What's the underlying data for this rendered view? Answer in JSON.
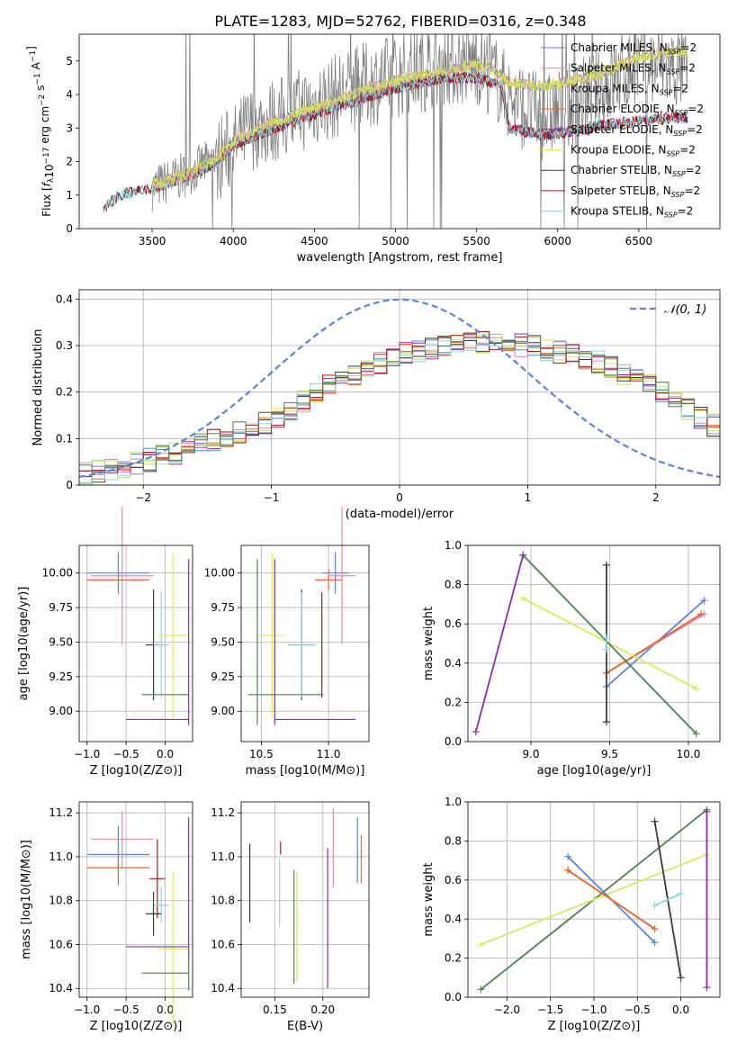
{
  "figure_title": "PLATE=1283, MJD=52762, FIBERID=0316, z=0.348",
  "colors": {
    "Chabrier MILES": "#5b84d6",
    "Salpeter MILES": "#e887b8",
    "Kroupa MILES": "#c9dc52",
    "Chabrier ELODIE": "#e26a2c",
    "Salpeter ELODIE": "#8e2ca8",
    "Kroupa ELODIE": "#d7ea5a",
    "Chabrier STELIB": "#3b3b3b",
    "Salpeter STELIB": "#b3151b",
    "Kroupa STELIB": "#8fd6dc",
    "data": "#808080",
    "normal": "#5b84d6",
    "extra_green": "#4f7f55"
  },
  "chart_data": [
    {
      "id": "spectrum",
      "type": "line",
      "xlabel": "wavelength [Angstrom, rest frame]",
      "ylabel": "Flux [f_λ 10^-17 erg cm^-2 s^-1 A^-1]",
      "xlim": [
        3050,
        7000
      ],
      "ylim": [
        0,
        5.8
      ],
      "xticks": [
        3500,
        4000,
        4500,
        5000,
        5500,
        6000,
        6500
      ],
      "yticks": [
        0,
        1,
        2,
        3,
        4,
        5
      ],
      "grid": false,
      "legend_position": "top-right",
      "legend": [
        {
          "label": "Chabrier MILES, N_SSP=2",
          "color_key": "Chabrier MILES"
        },
        {
          "label": "Salpeter MILES, N_SSP=2",
          "color_key": "Salpeter MILES"
        },
        {
          "label": "Kroupa MILES, N_SSP=2",
          "color_key": "Kroupa MILES"
        },
        {
          "label": "Chabrier ELODIE, N_SSP=2",
          "color_key": "Chabrier ELODIE"
        },
        {
          "label": "Salpeter ELODIE, N_SSP=2",
          "color_key": "Salpeter ELODIE"
        },
        {
          "label": "Kroupa ELODIE, N_SSP=2",
          "color_key": "Kroupa ELODIE"
        },
        {
          "label": "Chabrier STELIB, N_SSP=2",
          "color_key": "Chabrier STELIB"
        },
        {
          "label": "Salpeter STELIB, N_SSP=2",
          "color_key": "Salpeter STELIB"
        },
        {
          "label": "Kroupa STELIB, N_SSP=2",
          "color_key": "Kroupa STELIB"
        }
      ],
      "data_envelope": {
        "x": [
          3500,
          3700,
          3900,
          4000,
          4100,
          4300,
          4500,
          4700,
          4900,
          5100,
          5300,
          5500,
          5600,
          5700,
          5900,
          6100,
          6300,
          6500,
          6700,
          6800
        ],
        "y": [
          1.2,
          1.6,
          2.1,
          2.4,
          3.0,
          3.3,
          3.7,
          4.1,
          4.4,
          4.7,
          4.9,
          4.95,
          4.6,
          3.9,
          3.3,
          3.7,
          4.3,
          4.9,
          4.8,
          4.7
        ]
      },
      "model_spectra": [
        {
          "name": "MILES models",
          "x": [
            3500,
            3700,
            3900,
            4000,
            4200,
            4500,
            4800,
            5000,
            5300,
            5500,
            5600,
            5700,
            5900,
            6100,
            6300,
            6500,
            6700
          ],
          "y": [
            1.3,
            1.6,
            2.1,
            2.6,
            3.1,
            3.6,
            4.1,
            4.4,
            4.7,
            4.9,
            4.75,
            4.35,
            4.25,
            4.4,
            4.7,
            5.1,
            5.3
          ]
        },
        {
          "name": "STELIB/ELODIE models",
          "x": [
            3200,
            3300,
            3500,
            3700,
            3900,
            4000,
            4200,
            4500,
            4800,
            5000,
            5300,
            5500,
            5650,
            5700,
            5900,
            6100,
            6300,
            6500,
            6700
          ],
          "y": [
            0.6,
            1.0,
            1.2,
            1.55,
            1.95,
            2.5,
            2.9,
            3.4,
            3.9,
            4.2,
            4.5,
            4.5,
            4.3,
            3.0,
            2.8,
            2.9,
            3.1,
            3.2,
            3.3
          ]
        }
      ]
    },
    {
      "id": "residuals",
      "type": "line",
      "xlabel": "(data-model)/error",
      "ylabel": "Normed distribution",
      "xlim": [
        -2.5,
        2.5
      ],
      "ylim": [
        0,
        0.42
      ],
      "xticks": [
        -2,
        -1,
        0,
        1,
        2
      ],
      "yticks": [
        0.0,
        0.1,
        0.2,
        0.3,
        0.4
      ],
      "grid": true,
      "legend_position": "top-right",
      "legend": [
        {
          "label": "𝒩(0, 1)",
          "color_key": "normal"
        }
      ],
      "histogram_mean_curve": {
        "x": [
          -2.5,
          -2.0,
          -1.5,
          -1.0,
          -0.5,
          0.0,
          0.5,
          1.0,
          1.5,
          2.0,
          2.5
        ],
        "y": [
          0.02,
          0.05,
          0.09,
          0.14,
          0.22,
          0.28,
          0.31,
          0.3,
          0.27,
          0.21,
          0.12
        ]
      }
    },
    {
      "id": "age_vs_Z",
      "type": "scatter",
      "xlabel": "Z [log10(Z/Z⊙)]",
      "ylabel": "age [log10(age/yr)]",
      "xlim": [
        -1.1,
        0.35
      ],
      "ylim": [
        8.78,
        10.2
      ],
      "xticks": [
        -1.0,
        -0.5,
        0.0
      ],
      "xtick_labels": [
        "−1.0",
        "−0.5",
        "0.0"
      ],
      "yticks": [
        9.0,
        9.25,
        9.5,
        9.75,
        10.0
      ],
      "ytick_labels": [
        "9.00",
        "9.25",
        "9.50",
        "9.75",
        "10.00"
      ],
      "grid": true,
      "points": [
        {
          "color_key": "Chabrier MILES",
          "x": -0.6,
          "y": 10.0,
          "xerr": 0.4,
          "yerr": 0.15
        },
        {
          "color_key": "Salpeter MILES",
          "x": -0.55,
          "y": 9.98,
          "xerr": 0.4,
          "yerr": 0.5
        },
        {
          "color_key": "Chabrier ELODIE",
          "x": -0.6,
          "y": 9.95,
          "xerr": 0.4,
          "yerr": 0.08
        },
        {
          "color_key": "Chabrier STELIB",
          "x": -0.15,
          "y": 9.48,
          "xerr": 0.1,
          "yerr": 0.4
        },
        {
          "color_key": "Kroupa STELIB",
          "x": -0.05,
          "y": 9.48,
          "xerr": 0.1,
          "yerr": 0.38
        },
        {
          "color_key": "Kroupa ELODIE",
          "x": 0.1,
          "y": 9.55,
          "xerr": 0.2,
          "yerr": 0.6
        },
        {
          "color_key": "extra_green",
          "x": 0.0,
          "y": 9.12,
          "xerr": 0.3,
          "yerr": 0.0
        },
        {
          "color_key": "Salpeter ELODIE",
          "x": -0.1,
          "y": 8.94,
          "xerr": 0.4,
          "yerr": 0.0
        },
        {
          "color_key": "Salpeter ELODIE",
          "x": 0.3,
          "y": 9.5,
          "xerr": 0.0,
          "yerr": 0.6
        }
      ]
    },
    {
      "id": "age_vs_mass",
      "type": "scatter",
      "xlabel": "mass [log10(M/M⊙)]",
      "ylabel": "",
      "xlim": [
        10.35,
        11.3
      ],
      "ylim": [
        8.78,
        10.2
      ],
      "xticks": [
        10.5,
        11.0
      ],
      "xtick_labels": [
        "10.5",
        "11.0"
      ],
      "yticks": [
        9.0,
        9.25,
        9.5,
        9.75,
        10.0
      ],
      "ytick_labels": [
        "9.00",
        "9.25",
        "9.50",
        "9.75",
        "10.00"
      ],
      "grid": true,
      "points": [
        {
          "color_key": "Chabrier MILES",
          "x": 11.05,
          "y": 10.0,
          "xerr": 0.1,
          "yerr": 0.15
        },
        {
          "color_key": "Salpeter MILES",
          "x": 11.1,
          "y": 9.98,
          "xerr": 0.1,
          "yerr": 0.5
        },
        {
          "color_key": "Chabrier ELODIE",
          "x": 11.0,
          "y": 9.95,
          "xerr": 0.1,
          "yerr": 0.08
        },
        {
          "color_key": "Chabrier STELIB",
          "x": 10.8,
          "y": 9.48,
          "xerr": 0.1,
          "yerr": 0.4
        },
        {
          "color_key": "Kroupa STELIB",
          "x": 10.8,
          "y": 9.48,
          "xerr": 0.1,
          "yerr": 0.38
        },
        {
          "color_key": "Kroupa ELODIE",
          "x": 10.58,
          "y": 9.55,
          "xerr": 0.1,
          "yerr": 0.6
        },
        {
          "color_key": "extra_green",
          "x": 10.68,
          "y": 9.12,
          "xerr": 0.28,
          "yerr": 0.0
        },
        {
          "color_key": "extra_green",
          "x": 10.47,
          "y": 9.5,
          "xerr": 0.0,
          "yerr": 0.6
        },
        {
          "color_key": "Salpeter ELODIE",
          "x": 10.9,
          "y": 8.94,
          "xerr": 0.3,
          "yerr": 0.0
        },
        {
          "color_key": "Salpeter ELODIE",
          "x": 10.6,
          "y": 9.5,
          "xerr": 0.0,
          "yerr": 0.6
        },
        {
          "color_key": "Salpeter STELIB",
          "x": 10.95,
          "y": 9.48,
          "xerr": 0.0,
          "yerr": 0.38
        }
      ]
    },
    {
      "id": "weight_vs_age",
      "type": "line",
      "xlabel": "age [log10(age/yr)]",
      "ylabel": "mass weight",
      "xlim": [
        8.6,
        10.2
      ],
      "ylim": [
        0.0,
        1.0
      ],
      "xticks": [
        9.0,
        9.5,
        10.0
      ],
      "xtick_labels": [
        "9.0",
        "9.5",
        "10.0"
      ],
      "yticks": [
        0.0,
        0.2,
        0.4,
        0.6,
        0.8,
        1.0
      ],
      "ytick_labels": [
        "0.0",
        "0.2",
        "0.4",
        "0.6",
        "0.8",
        "1.0"
      ],
      "grid": true,
      "series": [
        {
          "color_key": "Chabrier MILES",
          "x": [
            9.48,
            10.1
          ],
          "y": [
            0.28,
            0.72
          ]
        },
        {
          "color_key": "Salpeter MILES",
          "x": [
            9.48,
            10.1
          ],
          "y": [
            0.35,
            0.65
          ]
        },
        {
          "color_key": "Chabrier ELODIE",
          "x": [
            9.48,
            10.08
          ],
          "y": [
            0.35,
            0.65
          ]
        },
        {
          "color_key": "Kroupa ELODIE",
          "x": [
            8.95,
            10.05
          ],
          "y": [
            0.73,
            0.27
          ]
        },
        {
          "color_key": "extra_green",
          "x": [
            8.95,
            10.05
          ],
          "y": [
            0.95,
            0.04
          ]
        },
        {
          "color_key": "Salpeter ELODIE",
          "x": [
            8.65,
            8.95
          ],
          "y": [
            0.05,
            0.95
          ]
        },
        {
          "color_key": "Chabrier STELIB",
          "x": [
            9.48,
            9.48
          ],
          "y": [
            0.1,
            0.9
          ]
        },
        {
          "color_key": "Kroupa STELIB",
          "x": [
            9.48,
            9.48
          ],
          "y": [
            0.47,
            0.53
          ]
        }
      ]
    },
    {
      "id": "mass_vs_Z",
      "type": "scatter",
      "xlabel": "Z [log10(Z/Z⊙)]",
      "ylabel": "mass [log10(M/M⊙)]",
      "xlim": [
        -1.1,
        0.35
      ],
      "ylim": [
        10.36,
        11.25
      ],
      "xticks": [
        -1.0,
        -0.5,
        0.0
      ],
      "xtick_labels": [
        "−1.0",
        "−0.5",
        "0.0"
      ],
      "yticks": [
        10.4,
        10.6,
        10.8,
        11.0,
        11.2
      ],
      "ytick_labels": [
        "10.4",
        "10.6",
        "10.8",
        "11.0",
        "11.2"
      ],
      "grid": true,
      "points": [
        {
          "color_key": "Chabrier MILES",
          "x": -0.6,
          "y": 11.01,
          "xerr": 0.4,
          "yerr": 0.13
        },
        {
          "color_key": "Salpeter MILES",
          "x": -0.55,
          "y": 11.08,
          "xerr": 0.4,
          "yerr": 0.13
        },
        {
          "color_key": "Chabrier ELODIE",
          "x": -0.6,
          "y": 10.95,
          "xerr": 0.4,
          "yerr": 0.08
        },
        {
          "color_key": "Salpeter STELIB",
          "x": -0.1,
          "y": 10.9,
          "xerr": 0.1,
          "yerr": 0.18
        },
        {
          "color_key": "Kroupa STELIB",
          "x": -0.05,
          "y": 10.78,
          "xerr": 0.1,
          "yerr": 0.08
        },
        {
          "color_key": "Chabrier STELIB",
          "x": -0.15,
          "y": 10.74,
          "xerr": 0.1,
          "yerr": 0.1
        },
        {
          "color_key": "Kroupa ELODIE",
          "x": 0.1,
          "y": 10.58,
          "xerr": 0.2,
          "yerr": 0.35
        },
        {
          "color_key": "extra_green",
          "x": 0.0,
          "y": 10.47,
          "xerr": 0.3,
          "yerr": 0.0
        },
        {
          "color_key": "Salpeter ELODIE",
          "x": -0.1,
          "y": 10.59,
          "xerr": 0.4,
          "yerr": 0.0
        },
        {
          "color_key": "Salpeter ELODIE",
          "x": 0.3,
          "y": 10.85,
          "xerr": 0.0,
          "yerr": 0.33
        },
        {
          "color_key": "extra_green",
          "x": 0.3,
          "y": 10.47,
          "xerr": 0.0,
          "yerr": 0.08
        }
      ]
    },
    {
      "id": "mass_vs_EBV",
      "type": "scatter",
      "xlabel": "E(B-V)",
      "ylabel": "",
      "xlim": [
        0.115,
        0.248
      ],
      "ylim": [
        10.36,
        11.25
      ],
      "xticks": [
        0.15,
        0.2
      ],
      "xtick_labels": [
        "0.15",
        "0.20"
      ],
      "yticks": [
        10.4,
        10.6,
        10.8,
        11.0,
        11.2
      ],
      "ytick_labels": [
        "10.4",
        "10.6",
        "10.8",
        "11.0",
        "11.2"
      ],
      "grid": true,
      "points": [
        {
          "color_key": "Chabrier STELIB",
          "x": 0.124,
          "y": 10.88,
          "xerr": 0.0,
          "yerr": 0.18
        },
        {
          "color_key": "Kroupa STELIB",
          "x": 0.155,
          "y": 10.84,
          "xerr": 0.0,
          "yerr": 0.15
        },
        {
          "color_key": "Salpeter STELIB",
          "x": 0.156,
          "y": 11.04,
          "xerr": 0.0,
          "yerr": 0.03
        },
        {
          "color_key": "extra_green",
          "x": 0.17,
          "y": 10.68,
          "xerr": 0.0,
          "yerr": 0.26
        },
        {
          "color_key": "Kroupa ELODIE",
          "x": 0.173,
          "y": 10.68,
          "xerr": 0.0,
          "yerr": 0.25
        },
        {
          "color_key": "Salpeter ELODIE",
          "x": 0.205,
          "y": 10.72,
          "xerr": 0.0,
          "yerr": 0.32
        },
        {
          "color_key": "Salpeter MILES",
          "x": 0.211,
          "y": 11.04,
          "xerr": 0.0,
          "yerr": 0.18
        },
        {
          "color_key": "Chabrier MILES",
          "x": 0.236,
          "y": 11.03,
          "xerr": 0.0,
          "yerr": 0.15
        },
        {
          "color_key": "Chabrier ELODIE",
          "x": 0.24,
          "y": 10.99,
          "xerr": 0.0,
          "yerr": 0.11
        }
      ]
    },
    {
      "id": "weight_vs_Z",
      "type": "line",
      "xlabel": "Z [log10(Z/Z⊙)]",
      "ylabel": "mass weight",
      "xlim": [
        -2.45,
        0.45
      ],
      "ylim": [
        0.0,
        1.0
      ],
      "xticks": [
        -2.0,
        -1.5,
        -1.0,
        -0.5,
        0.0
      ],
      "xtick_labels": [
        "−2.0",
        "−1.5",
        "−1.0",
        "−0.5",
        "0.0"
      ],
      "yticks": [
        0.0,
        0.2,
        0.4,
        0.6,
        0.8,
        1.0
      ],
      "ytick_labels": [
        "0.0",
        "0.2",
        "0.4",
        "0.6",
        "0.8",
        "1.0"
      ],
      "grid": true,
      "series": [
        {
          "color_key": "extra_green",
          "x": [
            -2.3,
            0.3
          ],
          "y": [
            0.04,
            0.96
          ]
        },
        {
          "color_key": "Kroupa ELODIE",
          "x": [
            -2.3,
            0.3
          ],
          "y": [
            0.27,
            0.73
          ]
        },
        {
          "color_key": "Chabrier MILES",
          "x": [
            -1.3,
            -0.3
          ],
          "y": [
            0.72,
            0.28
          ]
        },
        {
          "color_key": "Salpeter MILES",
          "x": [
            -1.3,
            -0.3
          ],
          "y": [
            0.65,
            0.35
          ]
        },
        {
          "color_key": "Chabrier ELODIE",
          "x": [
            -1.3,
            -0.3
          ],
          "y": [
            0.65,
            0.35
          ]
        },
        {
          "color_key": "Chabrier STELIB",
          "x": [
            -0.3,
            0.0
          ],
          "y": [
            0.9,
            0.1
          ]
        },
        {
          "color_key": "Kroupa STELIB",
          "x": [
            -0.3,
            0.0
          ],
          "y": [
            0.47,
            0.53
          ]
        },
        {
          "color_key": "Salpeter ELODIE",
          "x": [
            0.3,
            0.3
          ],
          "y": [
            0.05,
            0.95
          ]
        }
      ]
    }
  ]
}
